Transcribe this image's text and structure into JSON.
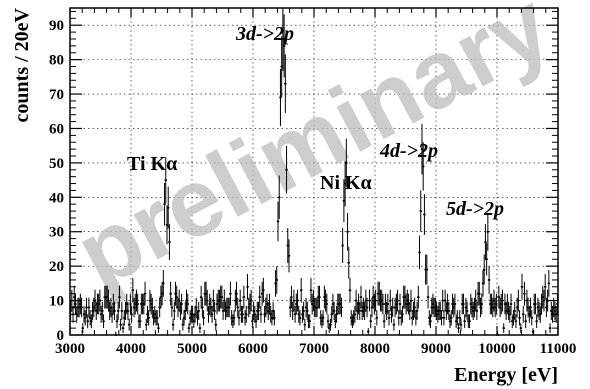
{
  "chart_data": {
    "type": "scatter",
    "title": "",
    "xlabel": "Energy [eV]",
    "ylabel": "counts / 20eV",
    "xlim": [
      3000,
      11000
    ],
    "ylim": [
      0,
      95
    ],
    "x_ticks": [
      3000,
      4000,
      5000,
      6000,
      7000,
      8000,
      9000,
      10000,
      11000
    ],
    "y_ticks": [
      0,
      10,
      20,
      30,
      40,
      50,
      60,
      70,
      80,
      90
    ],
    "grid": true,
    "watermark": "preliminary",
    "bin_width": 20,
    "baseline": 7.5,
    "error_bars": "sqrt(counts)",
    "peaks": [
      {
        "label": "Ti Kα",
        "center": 4580,
        "height": 30
      },
      {
        "label": "3d->2p",
        "center": 6490,
        "height": 76
      },
      {
        "label": "Ni Kα",
        "center": 7520,
        "height": 32
      },
      {
        "label": "4d->2p",
        "center": 8780,
        "height": 40
      },
      {
        "label": "5d->2p",
        "center": 9820,
        "height": 20
      }
    ]
  }
}
